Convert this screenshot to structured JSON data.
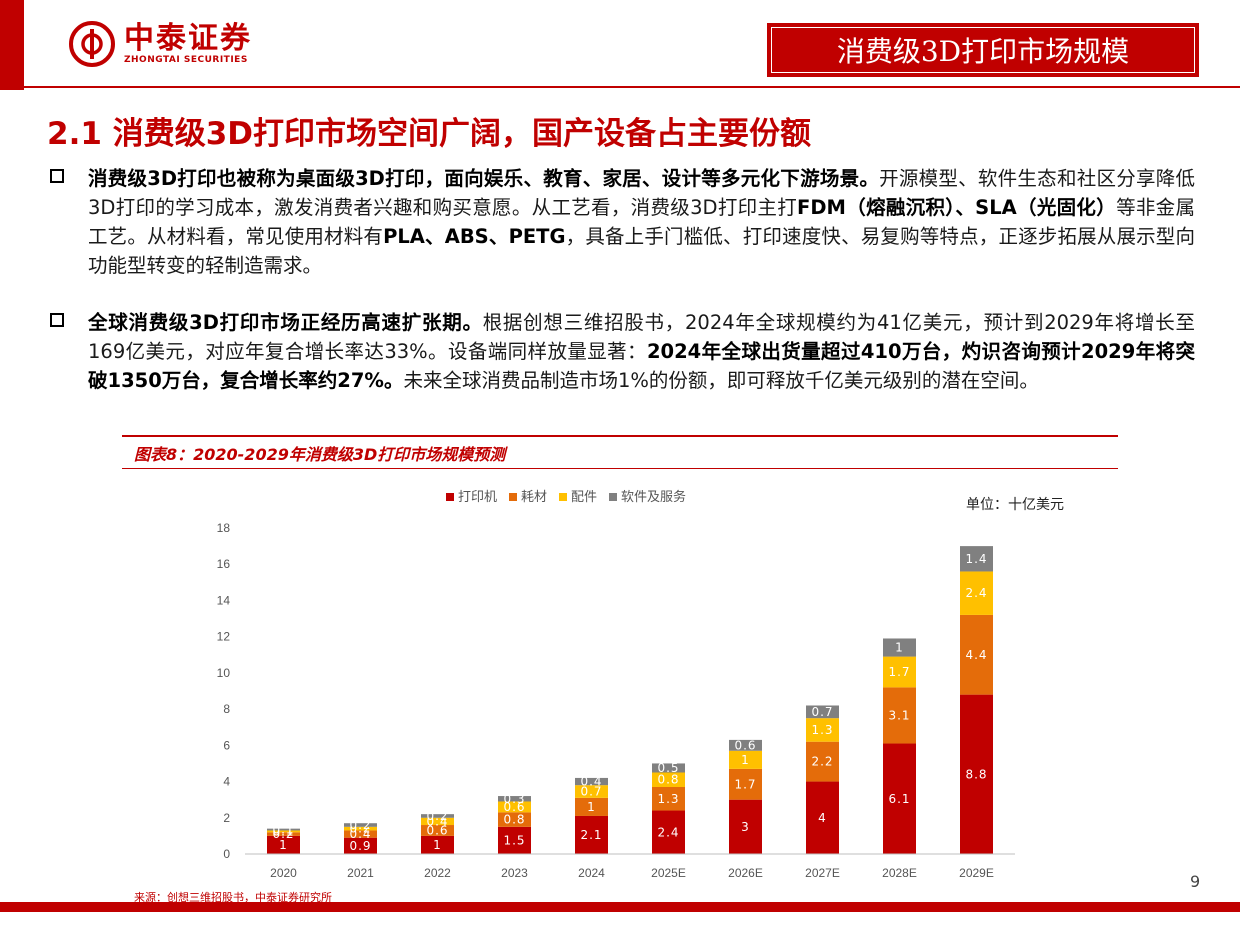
{
  "brand": {
    "name_cn": "中泰证券",
    "name_en": "ZHONGTAI SECURITIES",
    "color": "#c00000"
  },
  "header": {
    "title": "消费级3D打印市场规模"
  },
  "section": {
    "title": "2.1 消费级3D打印市场空间广阔，国产设备占主要份额"
  },
  "paragraphs": [
    {
      "bold": "消费级3D打印也被称为桌面级3D打印，面向娱乐、教育、家居、设计等多元化下游场景。",
      "text1": "开源模型、软件生态和社区分享降低3D打印的学习成本，激发消费者兴趣和购买意愿。从工艺看，消费级3D打印主打",
      "bold2": "FDM（熔融沉积）、SLA（光固化）",
      "text2": "等非金属工艺。从材料看，常见使用材料有",
      "bold3": "PLA、ABS、PETG",
      "text3": "，具备上手门槛低、打印速度快、易复购等特点，正逐步拓展从展示型向功能型转变的轻制造需求。"
    },
    {
      "bold": "全球消费级3D打印市场正经历高速扩张期。",
      "text1": "根据创想三维招股书，2024年全球规模约为41亿美元，预计到2029年将增长至169亿美元，对应年复合增长率达33%。设备端同样放量显著：",
      "bold2": "2024年全球出货量超过410万台，灼识咨询预计2029年将突破1350万台，复合增长率约27%。",
      "text2": "未来全球消费品制造市场1%的份额，即可释放千亿美元级别的潜在空间。"
    }
  ],
  "figure": {
    "title": "图表8：2020-2029年消费级3D打印市场规模预测",
    "unit": "单位：十亿美元"
  },
  "chart_data": {
    "type": "bar",
    "stacked": true,
    "categories": [
      "2020",
      "2021",
      "2022",
      "2023",
      "2024",
      "2025E",
      "2026E",
      "2027E",
      "2028E",
      "2029E"
    ],
    "series": [
      {
        "name": "打印机",
        "color": "#c00000",
        "values": [
          1,
          0.9,
          1,
          1.5,
          2.1,
          2.4,
          3,
          4,
          6.1,
          8.8
        ]
      },
      {
        "name": "耗材",
        "color": "#e46c0a",
        "values": [
          0.2,
          0.4,
          0.6,
          0.8,
          1,
          1.3,
          1.7,
          2.2,
          3.1,
          4.4
        ]
      },
      {
        "name": "配件",
        "color": "#ffc000",
        "values": [
          0.1,
          0.2,
          0.4,
          0.6,
          0.7,
          0.8,
          1,
          1.3,
          1.7,
          2.4
        ]
      },
      {
        "name": "软件及服务",
        "color": "#808080",
        "values": [
          0.1,
          0.2,
          0.2,
          0.3,
          0.4,
          0.5,
          0.6,
          0.7,
          1,
          1.4
        ]
      }
    ],
    "ylim": [
      0,
      18
    ],
    "yticks": [
      0,
      2,
      4,
      6,
      8,
      10,
      12,
      14,
      16,
      18
    ],
    "legend_position": "top",
    "grid": false
  },
  "source": "来源：创想三维招股书，中泰证券研究所",
  "page_number": "9"
}
